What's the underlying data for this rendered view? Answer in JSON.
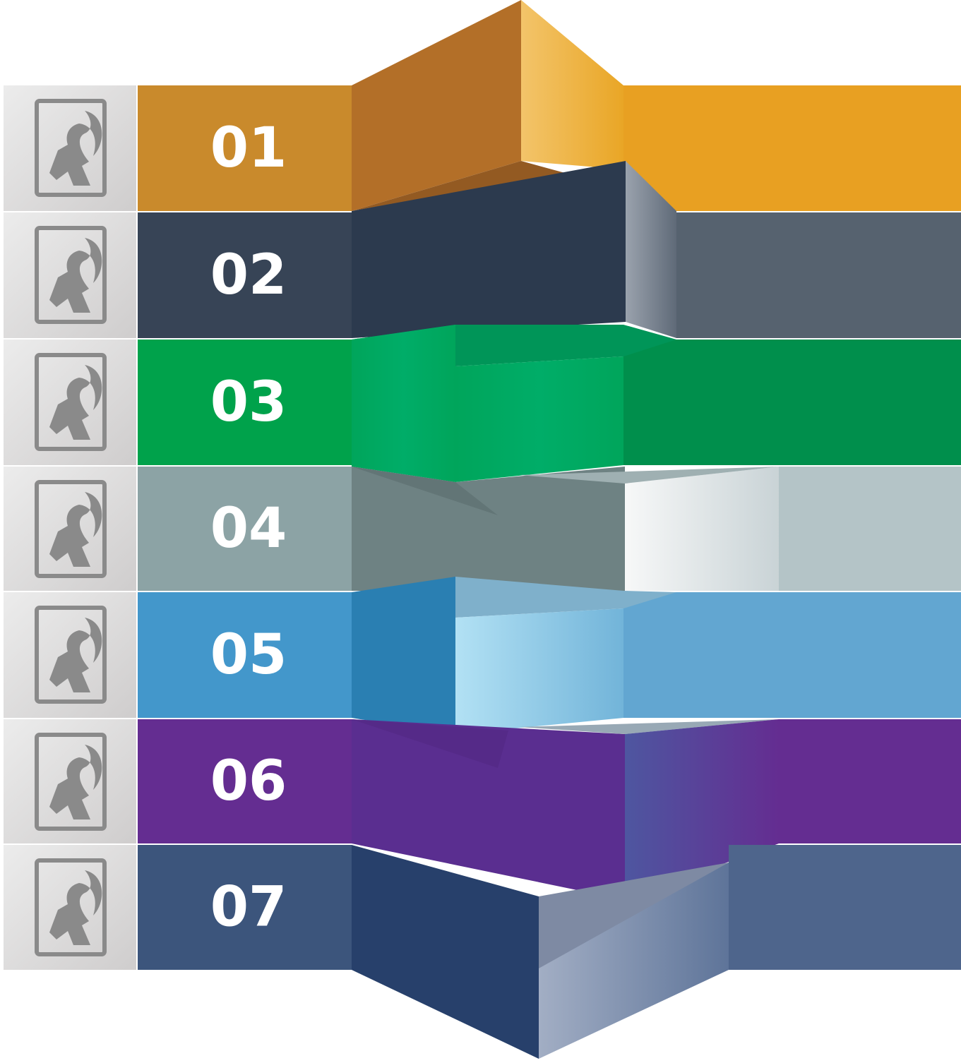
{
  "items": [
    {
      "label": "01"
    },
    {
      "label": "02"
    },
    {
      "label": "03"
    },
    {
      "label": "04"
    },
    {
      "label": "05"
    },
    {
      "label": "06"
    },
    {
      "label": "07"
    }
  ]
}
